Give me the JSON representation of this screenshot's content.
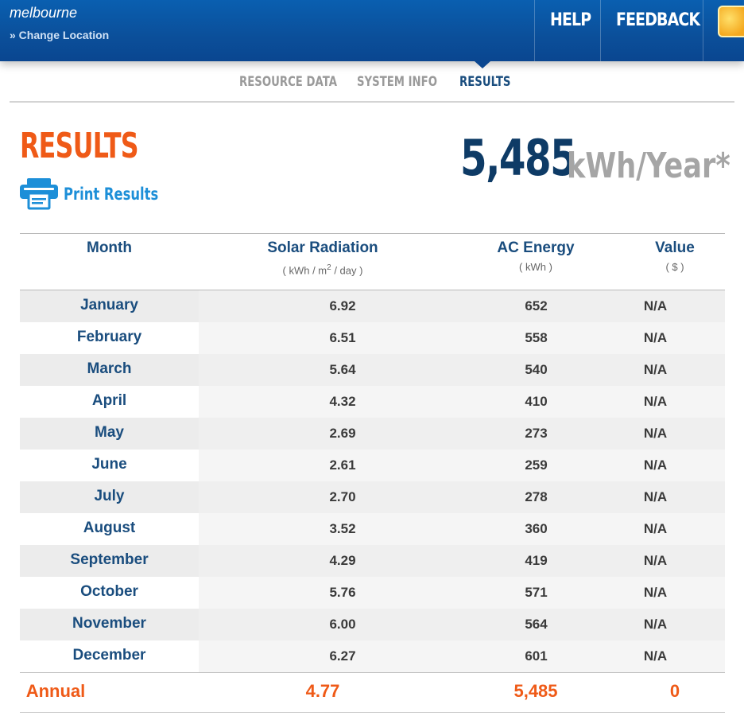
{
  "header": {
    "location": "melbourne",
    "change_location": "» Change Location",
    "help": "HELP",
    "feedback": "FEEDBACK"
  },
  "tabs": [
    {
      "label": "RESOURCE DATA",
      "active": false
    },
    {
      "label": "SYSTEM INFO",
      "active": false
    },
    {
      "label": "RESULTS",
      "active": true
    }
  ],
  "results": {
    "title": "RESULTS",
    "print_label": "Print Results",
    "total_value": "5,485",
    "total_unit": "kWh/Year*"
  },
  "table": {
    "columns": {
      "month": {
        "label": "Month",
        "unit": ""
      },
      "solar": {
        "label": "Solar Radiation",
        "unit_pre": "( kWh / m",
        "unit_sup": "2",
        "unit_post": " / day )"
      },
      "ac": {
        "label": "AC Energy",
        "unit": "( kWh )"
      },
      "value": {
        "label": "Value",
        "unit": "( $ )"
      }
    },
    "rows": [
      {
        "month": "January",
        "solar": "6.92",
        "ac": "652",
        "value": "N/A"
      },
      {
        "month": "February",
        "solar": "6.51",
        "ac": "558",
        "value": "N/A"
      },
      {
        "month": "March",
        "solar": "5.64",
        "ac": "540",
        "value": "N/A"
      },
      {
        "month": "April",
        "solar": "4.32",
        "ac": "410",
        "value": "N/A"
      },
      {
        "month": "May",
        "solar": "2.69",
        "ac": "273",
        "value": "N/A"
      },
      {
        "month": "June",
        "solar": "2.61",
        "ac": "259",
        "value": "N/A"
      },
      {
        "month": "July",
        "solar": "2.70",
        "ac": "278",
        "value": "N/A"
      },
      {
        "month": "August",
        "solar": "3.52",
        "ac": "360",
        "value": "N/A"
      },
      {
        "month": "September",
        "solar": "4.29",
        "ac": "419",
        "value": "N/A"
      },
      {
        "month": "October",
        "solar": "5.76",
        "ac": "571",
        "value": "N/A"
      },
      {
        "month": "November",
        "solar": "6.00",
        "ac": "564",
        "value": "N/A"
      },
      {
        "month": "December",
        "solar": "6.27",
        "ac": "601",
        "value": "N/A"
      }
    ],
    "annual": {
      "label": "Annual",
      "solar": "4.77",
      "ac": "5,485",
      "value": "0"
    }
  },
  "colors": {
    "accent_orange": "#ef5a17",
    "header_blue": "#0b4f9a",
    "text_navy": "#1a4d7e",
    "print_blue": "#1d8fd8"
  },
  "icons": {
    "print": "printer-icon",
    "logo": "sun-logo-icon"
  }
}
